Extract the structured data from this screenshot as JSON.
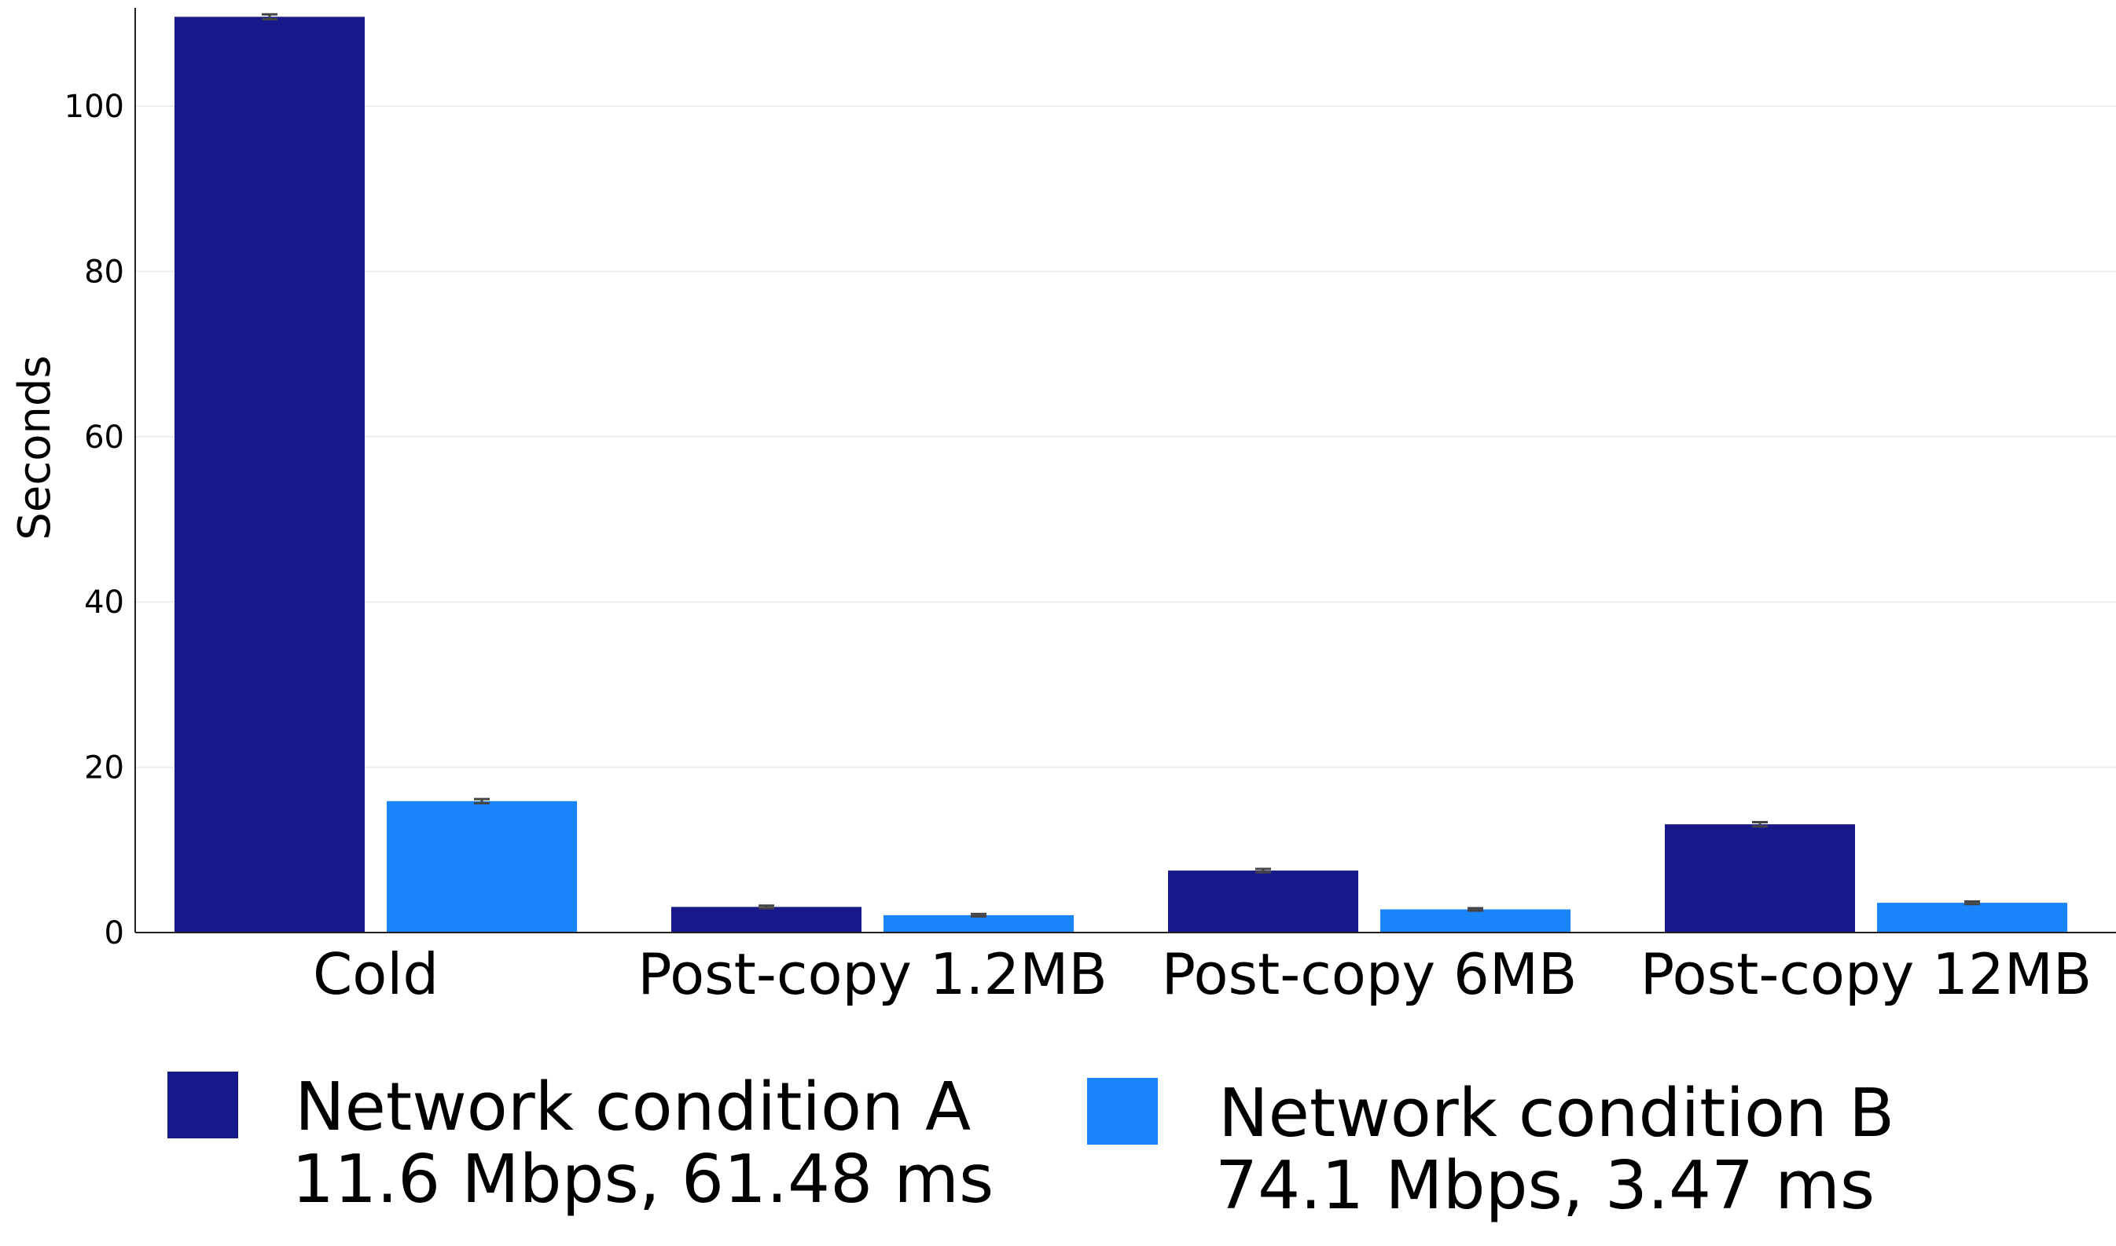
{
  "chart_data": {
    "type": "bar",
    "title": "",
    "xlabel": "",
    "ylabel": "Seconds",
    "ylim": [
      0,
      111
    ],
    "yticks": [
      0,
      20,
      40,
      60,
      80,
      100
    ],
    "grid": "horizontal",
    "legend_position": "bottom",
    "categories": [
      "Cold",
      "Post-copy 1.2MB",
      "Post-copy 6MB",
      "Post-copy 12MB"
    ],
    "series": [
      {
        "name": "Network condition A",
        "detail": "11.6 Mbps, 61.48 ms",
        "color": "#17198a",
        "values": [
          110.8,
          3.1,
          7.5,
          13.1
        ],
        "errors": [
          0.3,
          0.15,
          0.2,
          0.25
        ]
      },
      {
        "name": "Network condition B",
        "detail": "74.1 Mbps, 3.47 ms",
        "color": "#1a85fa",
        "values": [
          15.9,
          2.1,
          2.8,
          3.6
        ],
        "errors": [
          0.25,
          0.15,
          0.15,
          0.15
        ]
      }
    ]
  }
}
